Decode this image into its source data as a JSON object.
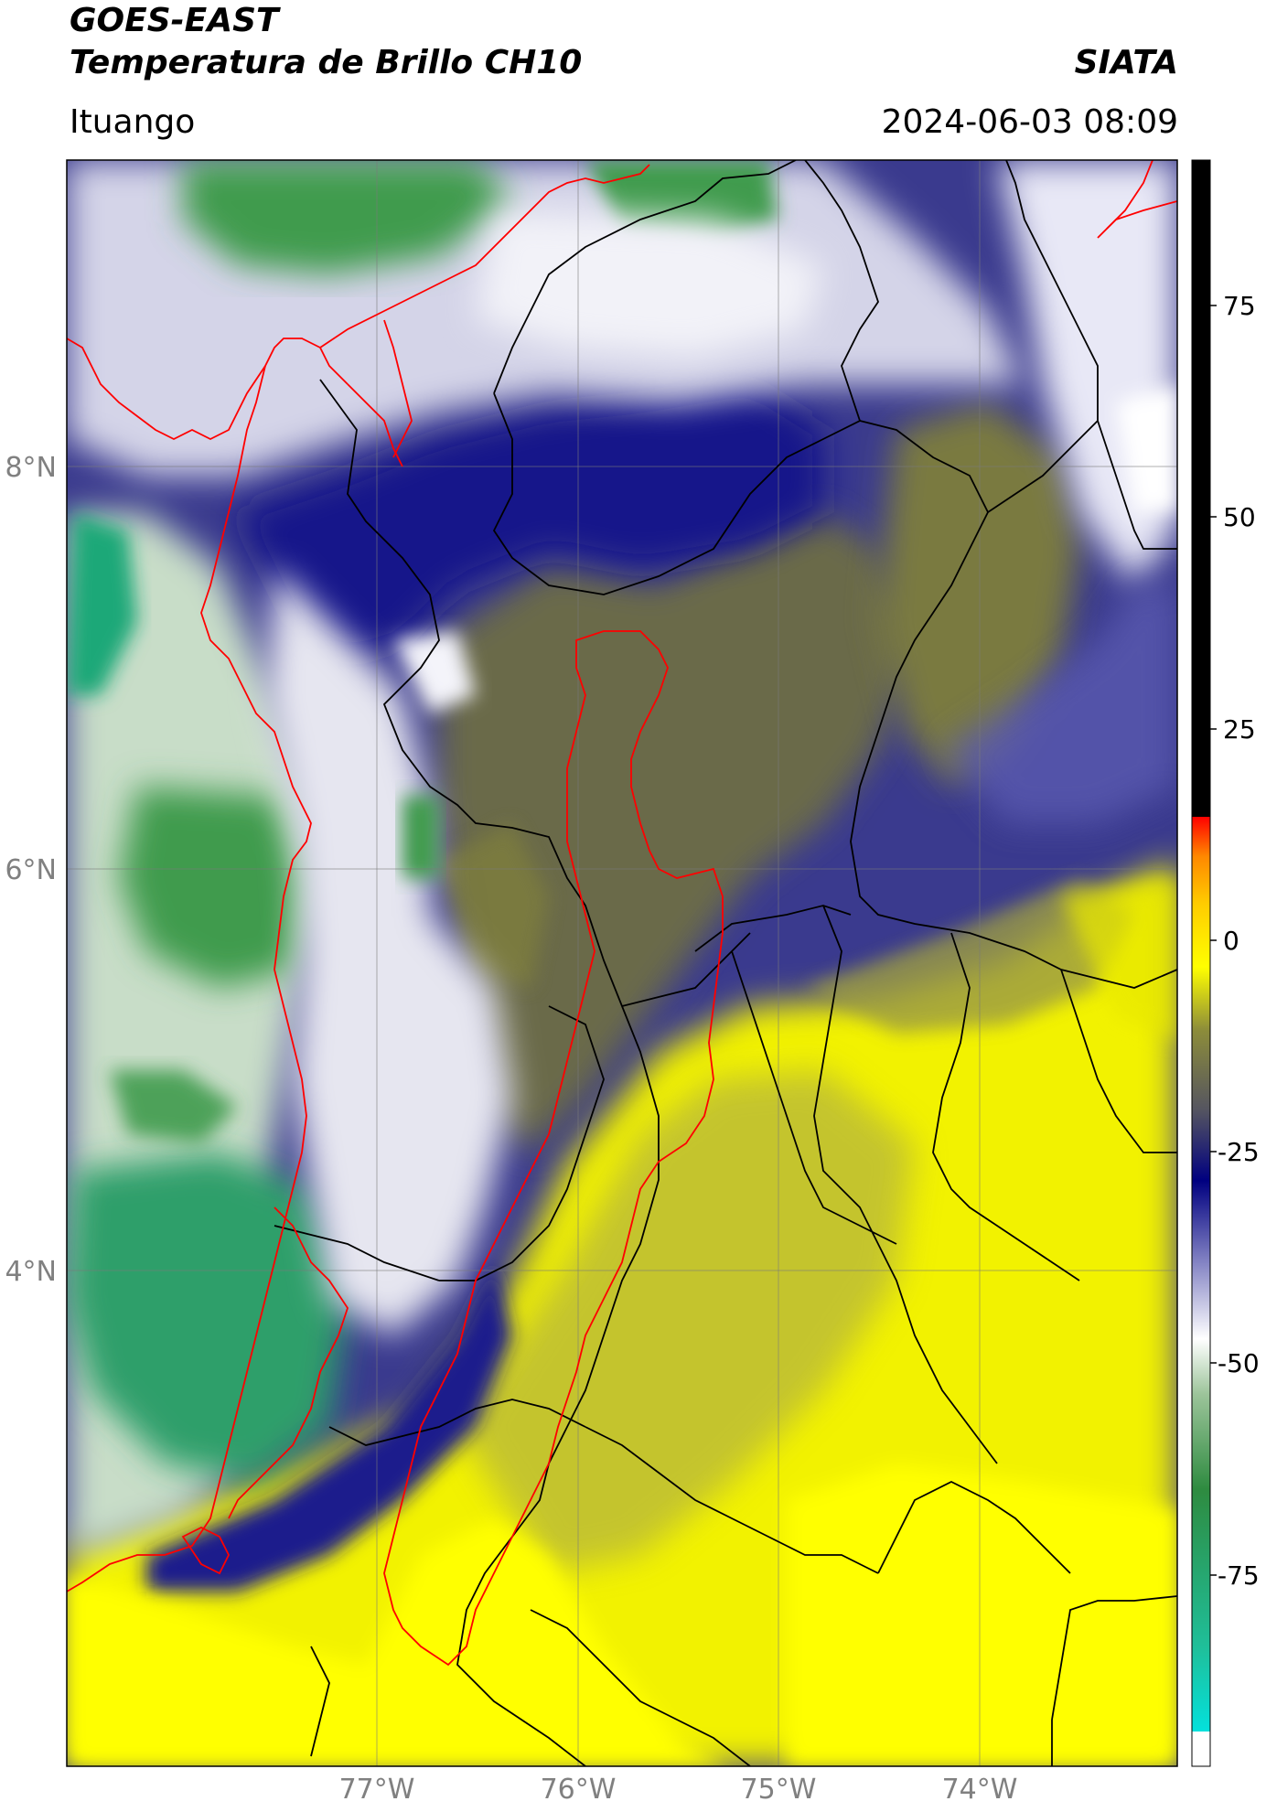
{
  "header": {
    "satellite": "GOES-EAST",
    "product": "Temperatura de Brillo CH10",
    "organization": "SIATA",
    "location": "Ituango",
    "datetime": "2024-06-03 08:09"
  },
  "map": {
    "lat_labels": [
      "8°N",
      "6°N",
      "4°N"
    ],
    "lon_labels": [
      "77°W",
      "76°W",
      "75°W",
      "74°W"
    ],
    "grid": true,
    "extent": {
      "lon_min": -78.55,
      "lon_max": -73.0,
      "lat_min": 1.55,
      "lat_max": 9.55
    },
    "coastline_color": "#ff0000",
    "border_color": "#000000"
  },
  "colorbar": {
    "ticks": [
      "75",
      "50",
      "25",
      "0",
      "-25",
      "-50",
      "-75"
    ],
    "range": [
      -95,
      95
    ],
    "colors": {
      "below_min": "#ffffff",
      "cyan": "#00e5e5",
      "green": "#2e8b40",
      "white": "#ffffff",
      "navy": "#000080",
      "olive": "#6e6e3e",
      "yellow": "#ffff00",
      "orange": "#ff9900",
      "red": "#ff0000",
      "black": "#000000"
    }
  }
}
